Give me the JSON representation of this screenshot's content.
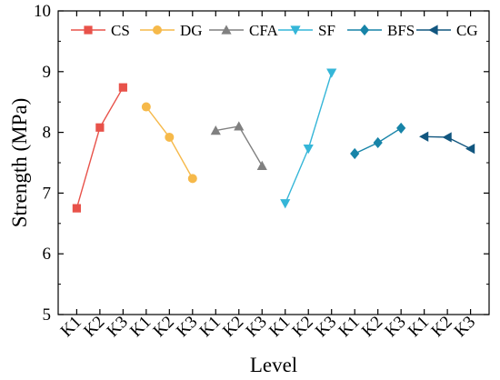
{
  "chart_data": {
    "type": "line",
    "title": "",
    "xlabel": "Level",
    "ylabel": "Strength (MPa)",
    "ylim": [
      5,
      10
    ],
    "yticks": [
      5,
      6,
      7,
      8,
      9,
      10
    ],
    "levels": [
      "K1",
      "K2",
      "K3"
    ],
    "grid": false,
    "legend_position": "top",
    "series": [
      {
        "name": "CS",
        "color": "#e8524a",
        "marker": "square",
        "values": [
          6.75,
          8.08,
          8.74
        ]
      },
      {
        "name": "DG",
        "color": "#f6b94a",
        "marker": "circle",
        "values": [
          8.42,
          7.92,
          7.24
        ]
      },
      {
        "name": "CFA",
        "color": "#808080",
        "marker": "triangle-up",
        "values": [
          8.03,
          8.1,
          7.45
        ]
      },
      {
        "name": "SF",
        "color": "#35b6d8",
        "marker": "triangle-down",
        "values": [
          6.83,
          7.73,
          8.98
        ]
      },
      {
        "name": "BFS",
        "color": "#1784a8",
        "marker": "diamond",
        "values": [
          7.65,
          7.83,
          8.07
        ]
      },
      {
        "name": "CG",
        "color": "#11567f",
        "marker": "triangle-left",
        "values": [
          7.93,
          7.92,
          7.73
        ]
      }
    ]
  }
}
